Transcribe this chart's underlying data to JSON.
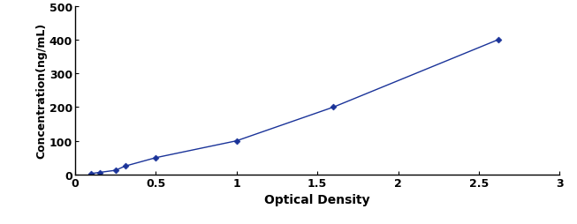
{
  "x": [
    0.1,
    0.152,
    0.25,
    0.31,
    0.5,
    1.0,
    1.6,
    2.62
  ],
  "y": [
    3.125,
    6.25,
    12.5,
    25,
    50,
    100,
    200,
    400
  ],
  "line_color": "#1a3399",
  "marker": "D",
  "marker_color": "#1a3399",
  "marker_size": 3.5,
  "line_width": 1.0,
  "xlabel": "Optical Density",
  "ylabel": "Concentration(ng/mL)",
  "xlim": [
    0,
    3
  ],
  "ylim": [
    0,
    500
  ],
  "xticks": [
    0,
    0.5,
    1,
    1.5,
    2,
    2.5,
    3
  ],
  "yticks": [
    0,
    100,
    200,
    300,
    400,
    500
  ],
  "xlabel_fontsize": 10,
  "ylabel_fontsize": 9,
  "tick_fontsize": 9,
  "fig_width": 6.53,
  "fig_height": 2.55,
  "dpi": 100
}
